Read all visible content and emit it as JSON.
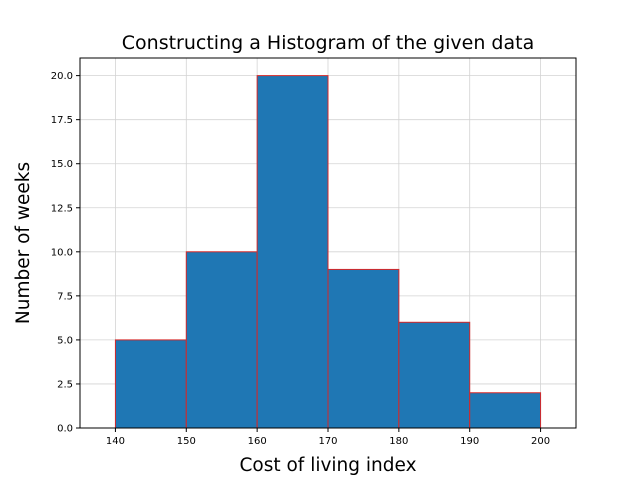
{
  "chart_data": {
    "type": "bar",
    "title": "Constructing a Histogram of the given data",
    "xlabel": "Cost of living index",
    "ylabel": "Number of weeks",
    "bin_edges": [
      140,
      150,
      160,
      170,
      180,
      190,
      200
    ],
    "values": [
      5,
      10,
      20,
      9,
      6,
      2
    ],
    "xlim": [
      135,
      205
    ],
    "ylim": [
      0,
      21
    ],
    "x_ticks": [
      140,
      150,
      160,
      170,
      180,
      190,
      200
    ],
    "y_ticks": [
      "0.0",
      "2.5",
      "5.0",
      "7.5",
      "10.0",
      "12.5",
      "15.0",
      "17.5",
      "20.0"
    ],
    "grid": true,
    "legend": "none",
    "colors": {
      "bar_fill": "#1f77b4",
      "bar_edge": "#d62728",
      "grid": "#d3d3d3",
      "axes": "#000000"
    }
  }
}
